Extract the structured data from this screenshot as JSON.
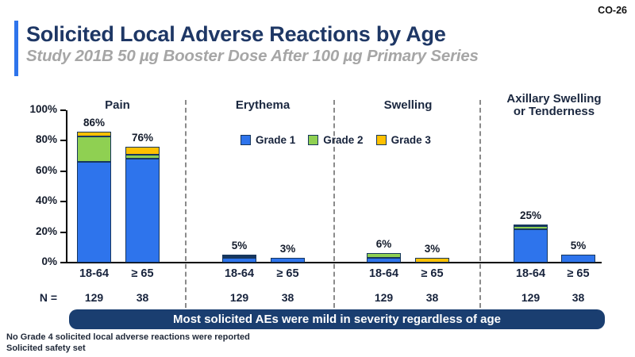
{
  "meta": {
    "slide_code": "CO-26"
  },
  "header": {
    "title": "Solicited Local Adverse Reactions by Age",
    "subtitle": "Study 201B 50 µg Booster Dose After 100 µg Primary Series"
  },
  "colors": {
    "grade1": "#2E74EC",
    "grade2": "#8FD052",
    "grade3": "#FFC000",
    "segment_border": "#17375E",
    "title_navy": "#1E3765",
    "subtitle_gray": "#A6A6A6",
    "accent_blue": "#2E74EC",
    "banner_navy": "#1A3E70"
  },
  "chart_data": {
    "type": "bar",
    "stacked": true,
    "unit": "%",
    "ylim": [
      0,
      100
    ],
    "yticks": [
      "0%",
      "20%",
      "40%",
      "60%",
      "80%",
      "100%"
    ],
    "grid": false,
    "legend_position": "top-center",
    "legend": [
      "Grade 1",
      "Grade 2",
      "Grade 3"
    ],
    "n_prefix": "N =",
    "groups": [
      {
        "name": "Pain",
        "bars": [
          {
            "age": "18-64",
            "n": "129",
            "total": 86,
            "label": "86%",
            "grade1": 66,
            "grade2": 17,
            "grade3": 3
          },
          {
            "age": "≥ 65",
            "n": "38",
            "total": 76,
            "label": "76%",
            "grade1": 68,
            "grade2": 3,
            "grade3": 5
          }
        ]
      },
      {
        "name": "Erythema",
        "bars": [
          {
            "age": "18-64",
            "n": "129",
            "total": 5,
            "label": "5%",
            "grade1": 3,
            "grade2": 1,
            "grade3": 1
          },
          {
            "age": "≥ 65",
            "n": "38",
            "total": 3,
            "label": "3%",
            "grade1": 3,
            "grade2": 0,
            "grade3": 0
          }
        ]
      },
      {
        "name": "Swelling",
        "bars": [
          {
            "age": "18-64",
            "n": "129",
            "total": 6,
            "label": "6%",
            "grade1": 3,
            "grade2": 3,
            "grade3": 0
          },
          {
            "age": "≥ 65",
            "n": "38",
            "total": 3,
            "label": "3%",
            "grade1": 0,
            "grade2": 0,
            "grade3": 3
          }
        ]
      },
      {
        "name": "Axillary Swelling\nor Tenderness",
        "bars": [
          {
            "age": "18-64",
            "n": "129",
            "total": 25,
            "label": "25%",
            "grade1": 22,
            "grade2": 2,
            "grade3": 1
          },
          {
            "age": "≥ 65",
            "n": "38",
            "total": 5,
            "label": "5%",
            "grade1": 5,
            "grade2": 0,
            "grade3": 0
          }
        ]
      }
    ]
  },
  "banner": {
    "text": "Most solicited AEs were mild in severity regardless of age"
  },
  "footnotes": [
    "No Grade 4 solicited local adverse reactions were reported",
    "Solicited safety set"
  ]
}
